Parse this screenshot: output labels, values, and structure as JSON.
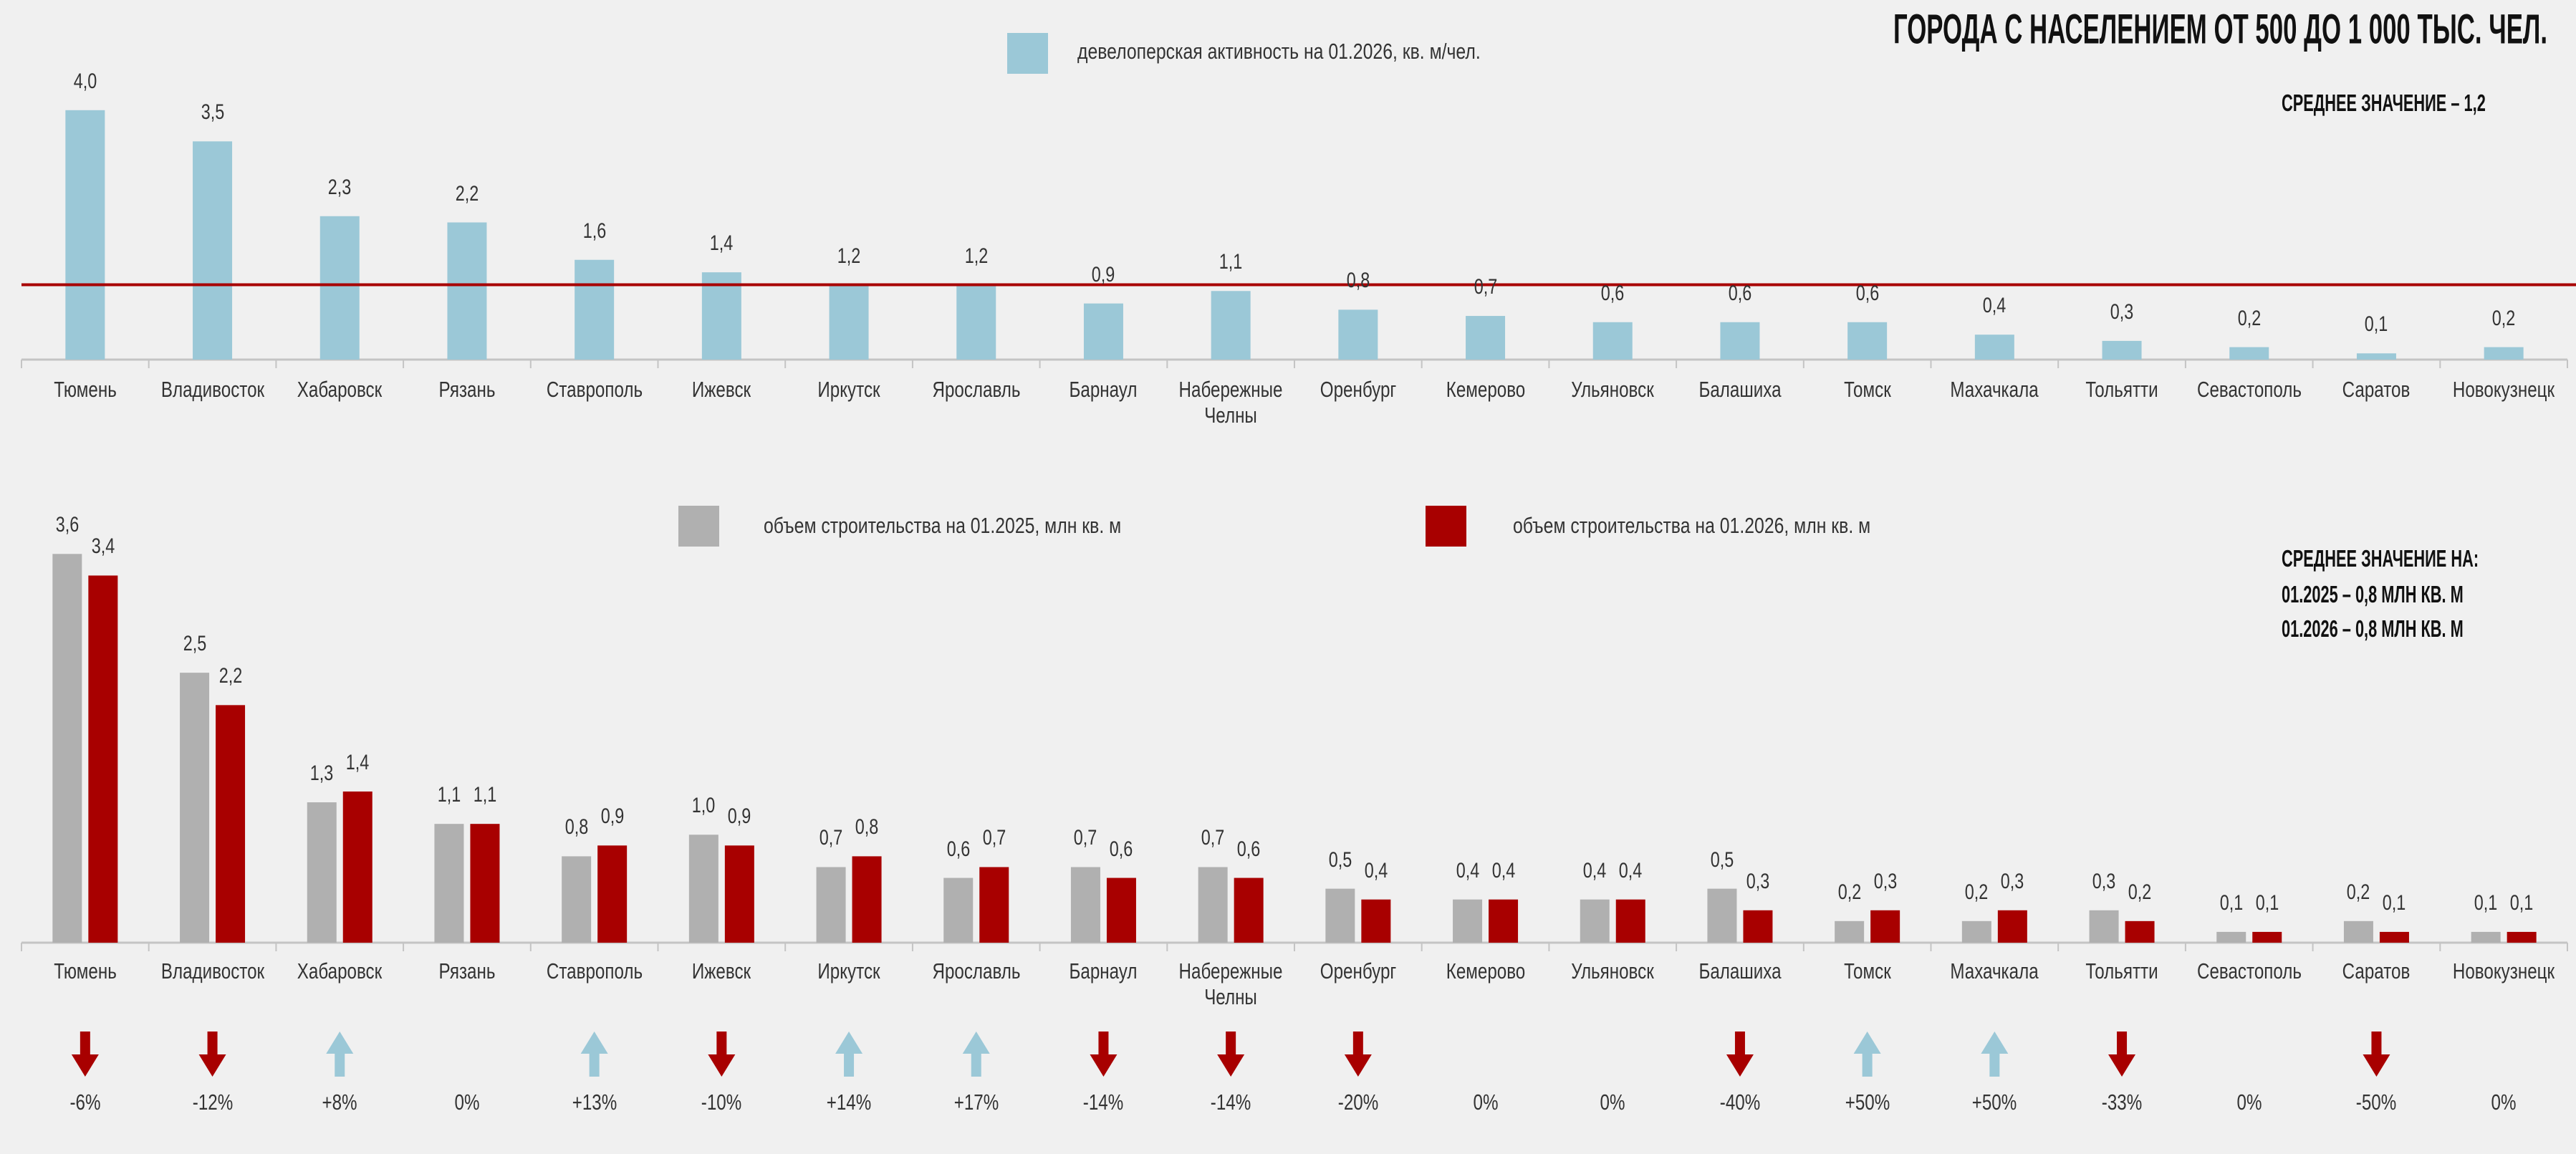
{
  "title": "ГОРОДА С НАСЕЛЕНИЕМ ОТ 500 ДО 1 000 ТЫС. ЧЕЛ.",
  "chart_data": [
    {
      "type": "bar",
      "categories": [
        "Тюмень",
        "Владивосток",
        "Хабаровск",
        "Рязань",
        "Ставрополь",
        "Ижевск",
        "Иркутск",
        "Ярославль",
        "Барнаул",
        "Набережные Челны",
        "Оренбург",
        "Кемерово",
        "Ульяновск",
        "Балашиха",
        "Томск",
        "Махачкала",
        "Тольятти",
        "Севастополь",
        "Саратов",
        "Новокузнецк"
      ],
      "series": [
        {
          "name": "девелоперская активность на 01.2026, кв. м/чел.",
          "color": "#9bc8d7",
          "values": [
            4.0,
            3.5,
            2.3,
            2.2,
            1.6,
            1.4,
            1.2,
            1.2,
            0.9,
            1.1,
            0.8,
            0.7,
            0.6,
            0.6,
            0.6,
            0.4,
            0.3,
            0.2,
            0.1,
            0.2
          ],
          "value_labels": [
            "4,0",
            "3,5",
            "2,3",
            "2,2",
            "1,6",
            "1,4",
            "1,2",
            "1,2",
            "0,9",
            "1,1",
            "0,8",
            "0,7",
            "0,6",
            "0,6",
            "0,6",
            "0,4",
            "0,3",
            "0,2",
            "0,1",
            "0,2"
          ]
        }
      ],
      "ylim": [
        0,
        4.4
      ],
      "reference_line": {
        "value": 1.2,
        "color": "#a80000"
      },
      "annotation": [
        "СРЕДНЕЕ ЗНАЧЕНИЕ – 1,2"
      ]
    },
    {
      "type": "bar",
      "categories": [
        "Тюмень",
        "Владивосток",
        "Хабаровск",
        "Рязань",
        "Ставрополь",
        "Ижевск",
        "Иркутск",
        "Ярославль",
        "Барнаул",
        "Набережные Челны",
        "Оренбург",
        "Кемерово",
        "Ульяновск",
        "Балашиха",
        "Томск",
        "Махачкала",
        "Тольятти",
        "Севастополь",
        "Саратов",
        "Новокузнецк"
      ],
      "series": [
        {
          "name": "объем строительства на 01.2025, млн кв. м",
          "color": "#b0b0b0",
          "values": [
            3.6,
            2.5,
            1.3,
            1.1,
            0.8,
            1.0,
            0.7,
            0.6,
            0.7,
            0.7,
            0.5,
            0.4,
            0.4,
            0.5,
            0.2,
            0.2,
            0.3,
            0.1,
            0.2,
            0.1
          ],
          "value_labels": [
            "3,6",
            "2,5",
            "1,3",
            "1,1",
            "0,8",
            "1,0",
            "0,7",
            "0,6",
            "0,7",
            "0,7",
            "0,5",
            "0,4",
            "0,4",
            "0,5",
            "0,2",
            "0,2",
            "0,3",
            "0,1",
            "0,2",
            "0,1"
          ]
        },
        {
          "name": "объем строительства на 01.2026, млн кв. м",
          "color": "#a80000",
          "values": [
            3.4,
            2.2,
            1.4,
            1.1,
            0.9,
            0.9,
            0.8,
            0.7,
            0.6,
            0.6,
            0.4,
            0.4,
            0.4,
            0.3,
            0.3,
            0.3,
            0.2,
            0.1,
            0.1,
            0.1
          ],
          "value_labels": [
            "3,4",
            "2,2",
            "1,4",
            "1,1",
            "0,9",
            "0,9",
            "0,8",
            "0,7",
            "0,6",
            "0,6",
            "0,4",
            "0,4",
            "0,4",
            "0,3",
            "0,3",
            "0,3",
            "0,2",
            "0,1",
            "0,1",
            "0,1"
          ]
        }
      ],
      "ylim": [
        0,
        4.0
      ],
      "annotation": [
        "СРЕДНЕЕ ЗНАЧЕНИЕ НА:",
        "01.2025 – 0,8 МЛН КВ. М",
        "01.2026 – 0,8 МЛН КВ. М"
      ]
    }
  ],
  "change": {
    "values": [
      -6,
      -12,
      8,
      0,
      13,
      -10,
      14,
      17,
      -14,
      -14,
      -20,
      0,
      0,
      -40,
      50,
      50,
      -33,
      0,
      -50,
      0
    ],
    "value_labels": [
      "-6%",
      "-12%",
      "+8%",
      "0%",
      "+13%",
      "-10%",
      "+14%",
      "+17%",
      "-14%",
      "-14%",
      "-20%",
      "0%",
      "0%",
      "-40%",
      "+50%",
      "+50%",
      "-33%",
      "0%",
      "-50%",
      "0%"
    ],
    "up_color": "#9bc8d7",
    "down_color": "#a80000"
  }
}
